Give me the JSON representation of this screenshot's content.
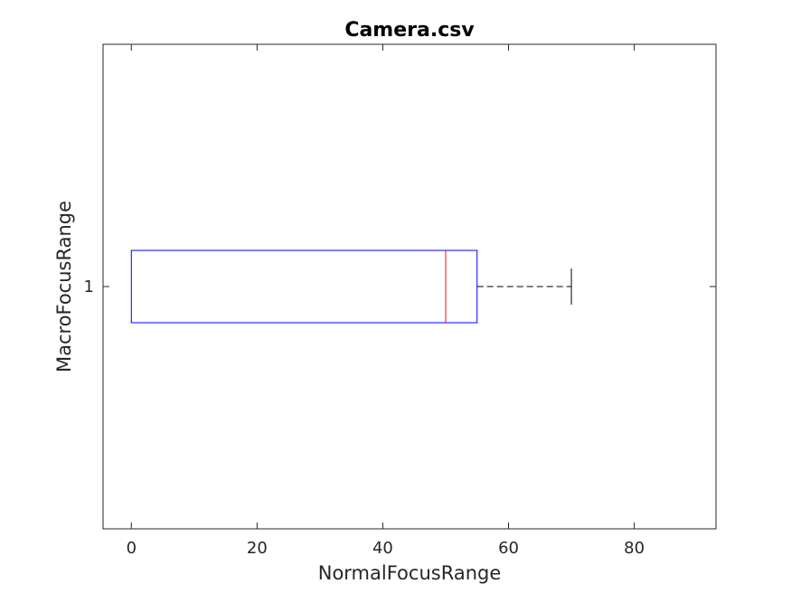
{
  "chart_data": {
    "type": "boxplot",
    "orientation": "horizontal",
    "title": "Camera.csv",
    "xlabel": "NormalFocusRange",
    "ylabel": "MacroFocusRange",
    "xlim": [
      -4.5,
      93
    ],
    "xticks": [
      0,
      20,
      40,
      60,
      80
    ],
    "categories": [
      "1"
    ],
    "boxes": [
      {
        "category": "1",
        "q1": 0,
        "median": 50,
        "q3": 55,
        "whisker_low": 0,
        "whisker_high": 70
      }
    ],
    "colors": {
      "box": "#0000ff",
      "median": "#ff0000",
      "whisker": "#000000"
    },
    "grid": false,
    "legend": "none"
  }
}
